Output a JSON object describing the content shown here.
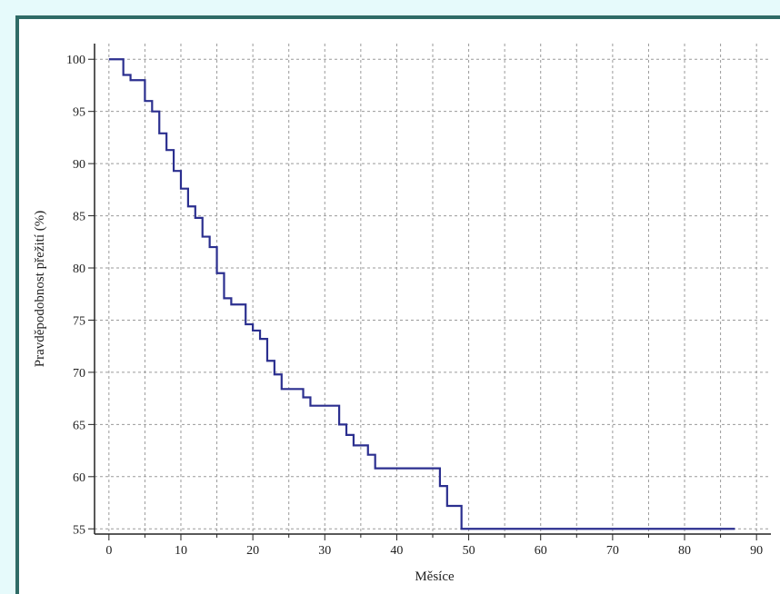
{
  "chart_data": {
    "type": "line",
    "title": "",
    "xlabel": "Měsíce",
    "ylabel": "Pravděpodobnost přežití (%)",
    "xlim": [
      -2,
      92
    ],
    "ylim": [
      54.5,
      101.5
    ],
    "xticks": [
      0,
      10,
      20,
      30,
      40,
      50,
      60,
      70,
      80,
      90
    ],
    "yticks": [
      55,
      60,
      65,
      70,
      75,
      80,
      85,
      90,
      95,
      100
    ],
    "xgrid_step": 5,
    "grid": true,
    "grid_style": "dashed",
    "step": true,
    "series": [
      {
        "color": "#2b2f8f",
        "x": [
          0,
          2,
          3,
          5,
          6,
          7,
          8,
          9,
          10,
          11,
          12,
          13,
          14,
          15,
          16,
          17,
          19,
          20,
          21,
          22,
          23,
          24,
          27,
          28,
          29,
          32,
          33,
          34,
          36,
          37,
          46,
          47,
          49,
          87
        ],
        "y": [
          100,
          98.5,
          98,
          96,
          95,
          92.9,
          91.3,
          89.3,
          87.6,
          85.9,
          84.8,
          83,
          82,
          79.5,
          77.1,
          76.5,
          74.6,
          74,
          73.2,
          71.1,
          69.8,
          68.4,
          67.6,
          66.8,
          66.8,
          65,
          64,
          63,
          62.1,
          60.8,
          59.1,
          57.2,
          55,
          55
        ]
      }
    ]
  }
}
